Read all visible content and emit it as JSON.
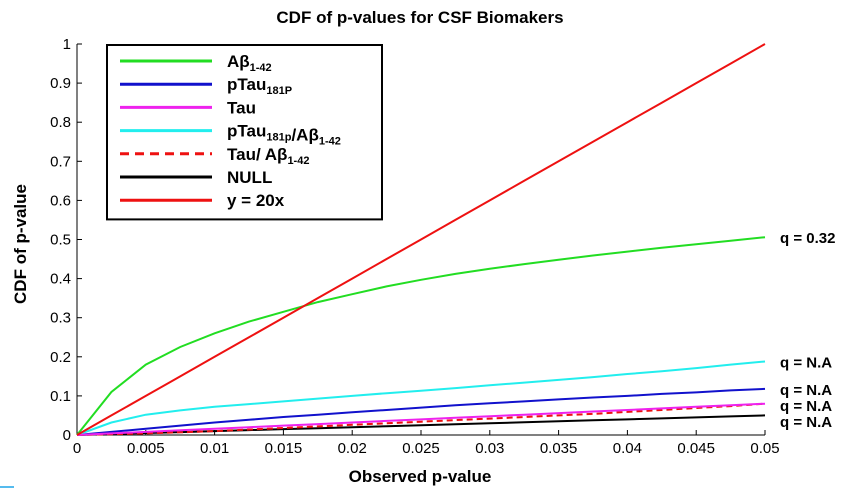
{
  "chart_data": {
    "type": "line",
    "title": "CDF of p-values for CSF Biomakers",
    "xlabel": "Observed p-value",
    "ylabel": "CDF of p-value",
    "xlim": [
      0,
      0.05
    ],
    "ylim": [
      0,
      1
    ],
    "xticks": [
      "0",
      "0.005",
      "0.01",
      "0.015",
      "0.02",
      "0.025",
      "0.03",
      "0.035",
      "0.04",
      "0.045",
      "0.05"
    ],
    "yticks": [
      "0",
      "0.1",
      "0.2",
      "0.3",
      "0.4",
      "0.5",
      "0.6",
      "0.7",
      "0.8",
      "0.9",
      "1"
    ],
    "grid": false,
    "legend_position": "top-left",
    "x": [
      0,
      0.0025,
      0.005,
      0.0075,
      0.01,
      0.0125,
      0.015,
      0.0175,
      0.02,
      0.0225,
      0.025,
      0.0275,
      0.03,
      0.0325,
      0.035,
      0.0375,
      0.04,
      0.0425,
      0.045,
      0.0475,
      0.05
    ],
    "series": [
      {
        "name": "Aβ1-42",
        "name_main": "Aβ",
        "name_sub": "1-42",
        "color": "#22dd22",
        "dash": "solid",
        "values": [
          0,
          0.11,
          0.18,
          0.225,
          0.26,
          0.29,
          0.315,
          0.34,
          0.36,
          0.38,
          0.397,
          0.412,
          0.425,
          0.437,
          0.448,
          0.459,
          0.469,
          0.479,
          0.488,
          0.497,
          0.506
        ],
        "annotation": "q = 0.32"
      },
      {
        "name": "pTau181P",
        "name_main": "pTau",
        "name_sub": "181P",
        "color": "#1111cc",
        "dash": "solid",
        "values": [
          0,
          0.008,
          0.016,
          0.024,
          0.032,
          0.039,
          0.046,
          0.052,
          0.058,
          0.064,
          0.07,
          0.076,
          0.081,
          0.086,
          0.091,
          0.096,
          0.1,
          0.105,
          0.109,
          0.114,
          0.118
        ],
        "annotation": "q = N.A"
      },
      {
        "name": "Tau",
        "name_main": "Tau",
        "name_sub": "",
        "color": "#ee22ee",
        "dash": "solid",
        "values": [
          0,
          0.004,
          0.008,
          0.012,
          0.016,
          0.02,
          0.024,
          0.028,
          0.032,
          0.036,
          0.04,
          0.044,
          0.048,
          0.052,
          0.056,
          0.06,
          0.064,
          0.068,
          0.072,
          0.076,
          0.08
        ],
        "annotation": ""
      },
      {
        "name": "pTau181p/Aβ1-42",
        "name_main": "pTau",
        "name_sub": "181p",
        "name_tail": "/Aβ",
        "name_sub2": "1-42",
        "color": "#22eeee",
        "dash": "solid",
        "values": [
          0,
          0.032,
          0.052,
          0.063,
          0.072,
          0.079,
          0.086,
          0.093,
          0.1,
          0.107,
          0.113,
          0.12,
          0.127,
          0.134,
          0.141,
          0.148,
          0.156,
          0.163,
          0.171,
          0.18,
          0.188
        ],
        "annotation": "q = N.A"
      },
      {
        "name": "Tau/ Aβ1-42",
        "name_main": "Tau/ Aβ",
        "name_sub": "1-42",
        "color": "#ee1111",
        "dash": "dashed",
        "values": [
          0,
          0.002,
          0.004,
          0.007,
          0.01,
          0.014,
          0.018,
          0.022,
          0.026,
          0.03,
          0.034,
          0.038,
          0.042,
          0.046,
          0.05,
          0.054,
          0.059,
          0.064,
          0.069,
          0.074,
          0.08
        ],
        "annotation": "q = N.A"
      },
      {
        "name": "NULL",
        "name_main": "NULL",
        "name_sub": "",
        "color": "#000000",
        "dash": "solid",
        "values": [
          0,
          0.0025,
          0.005,
          0.0075,
          0.01,
          0.0125,
          0.015,
          0.0175,
          0.02,
          0.0225,
          0.025,
          0.0275,
          0.03,
          0.0325,
          0.035,
          0.0375,
          0.04,
          0.0425,
          0.045,
          0.0475,
          0.05
        ],
        "annotation": "q = N.A"
      },
      {
        "name": "y = 20x",
        "name_main": "y = 20x",
        "name_sub": "",
        "color": "#ee1111",
        "dash": "solid",
        "values": [
          0,
          0.05,
          0.1,
          0.15,
          0.2,
          0.25,
          0.3,
          0.35,
          0.4,
          0.45,
          0.5,
          0.55,
          0.6,
          0.65,
          0.7,
          0.75,
          0.8,
          0.85,
          0.9,
          0.95,
          1.0
        ],
        "annotation": ""
      }
    ]
  }
}
